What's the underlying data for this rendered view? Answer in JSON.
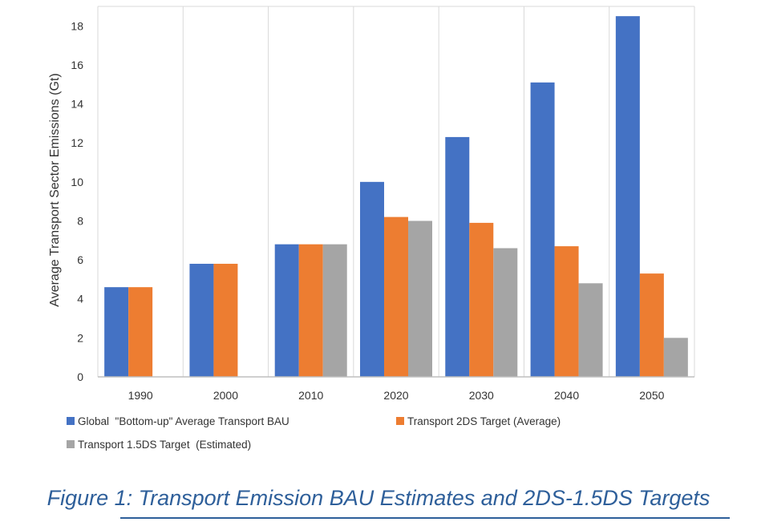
{
  "chart_data": {
    "type": "bar",
    "categories": [
      "1990",
      "2000",
      "2010",
      "2020",
      "2030",
      "2040",
      "2050"
    ],
    "series": [
      {
        "name": "Global  \"Bottom-up\" Average Transport BAU",
        "color": "#4472c4",
        "values": [
          4.6,
          5.8,
          6.8,
          10.0,
          12.3,
          15.1,
          18.5
        ]
      },
      {
        "name": "Transport 2DS Target (Average)",
        "color": "#ed7d31",
        "values": [
          4.6,
          5.8,
          6.8,
          8.2,
          7.9,
          6.7,
          5.3
        ]
      },
      {
        "name": "Transport 1.5DS Target  (Estimated)",
        "color": "#a5a5a5",
        "values": [
          null,
          null,
          6.8,
          8.0,
          6.6,
          4.8,
          2.0
        ]
      }
    ],
    "ylabel": "Average Transport Sector Emissions (Gt)",
    "ylim": [
      0,
      19
    ],
    "yticks": [
      0,
      2,
      4,
      6,
      8,
      10,
      12,
      14,
      16,
      18
    ],
    "grid": {
      "vertical": true,
      "horizontal": false
    },
    "legend": "bottom"
  },
  "caption": "Figure 1: Transport Emission BAU Estimates and 2DS-1.5DS Targets"
}
